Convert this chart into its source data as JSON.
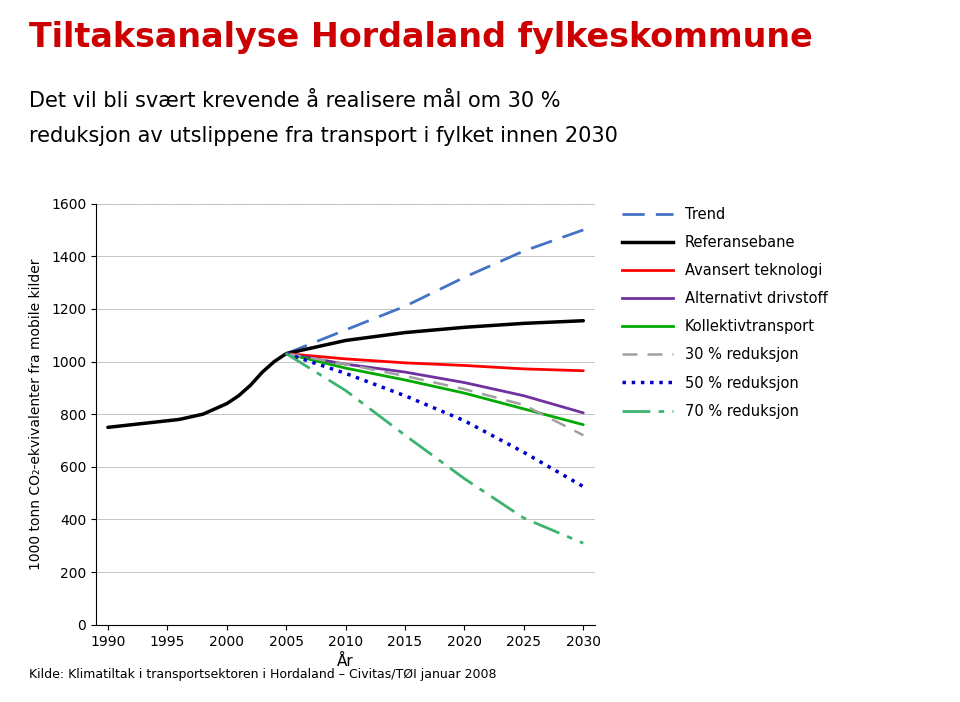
{
  "title_main": "Tiltaksanalyse Hordaland fylkeskommune",
  "subtitle_line1": "Det vil bli svært krevende å realisere mål om 30 %",
  "subtitle_line2": "reduksjon av utslippene fra transport i fylket innen 2030",
  "xlabel": "År",
  "ylabel": "1000 tonn CO₂-ekvivalenter fra mobile kilder",
  "footnote": "Kilde: Klimatiltak i transportsektoren i Hordaland – Civitas/TØI januar 2008",
  "ylim": [
    0,
    1600
  ],
  "yticks": [
    0,
    200,
    400,
    600,
    800,
    1000,
    1200,
    1400,
    1600
  ],
  "xticks": [
    1990,
    1995,
    2000,
    2005,
    2010,
    2015,
    2020,
    2025,
    2030
  ],
  "series": {
    "Trend": {
      "x": [
        2005,
        2010,
        2015,
        2020,
        2025,
        2030
      ],
      "y": [
        1030,
        1120,
        1210,
        1320,
        1420,
        1500
      ],
      "color": "#4472C4",
      "linestyle": "--",
      "linewidth": 2.0,
      "dashes": [
        8,
        4
      ]
    },
    "Referansebane": {
      "x": [
        1990,
        1992,
        1994,
        1996,
        1998,
        2000,
        2001,
        2002,
        2003,
        2004,
        2005,
        2010,
        2015,
        2020,
        2025,
        2030
      ],
      "y": [
        750,
        760,
        770,
        780,
        800,
        840,
        870,
        910,
        960,
        1000,
        1030,
        1080,
        1110,
        1130,
        1145,
        1155
      ],
      "color": "#000000",
      "linestyle": "-",
      "linewidth": 2.5,
      "dashes": null
    },
    "Avansert teknologi": {
      "x": [
        2005,
        2010,
        2015,
        2020,
        2025,
        2030
      ],
      "y": [
        1030,
        1010,
        995,
        985,
        972,
        965
      ],
      "color": "#FF0000",
      "linestyle": "-",
      "linewidth": 2.0,
      "dashes": null
    },
    "Alternativt drivstoff": {
      "x": [
        2005,
        2010,
        2015,
        2020,
        2025,
        2030
      ],
      "y": [
        1030,
        990,
        960,
        920,
        870,
        805
      ],
      "color": "#7030A0",
      "linestyle": "-",
      "linewidth": 2.0,
      "dashes": null
    },
    "Kollektivtransport": {
      "x": [
        2005,
        2010,
        2015,
        2020,
        2025,
        2030
      ],
      "y": [
        1030,
        975,
        930,
        880,
        820,
        760
      ],
      "color": "#00AA00",
      "linestyle": "-",
      "linewidth": 2.0,
      "dashes": null
    },
    "30 % reduksjon": {
      "x": [
        2005,
        2010,
        2015,
        2020,
        2025,
        2030
      ],
      "y": [
        1030,
        990,
        945,
        895,
        835,
        720
      ],
      "color": "#A0A0A0",
      "linestyle": "--",
      "linewidth": 1.8,
      "dashes": [
        6,
        4
      ]
    },
    "50 % reduksjon": {
      "x": [
        2005,
        2010,
        2015,
        2020,
        2025,
        2030
      ],
      "y": [
        1030,
        955,
        870,
        775,
        655,
        525
      ],
      "color": "#0000CD",
      "linestyle": ":",
      "linewidth": 2.5,
      "dashes": null
    },
    "70 % reduksjon": {
      "x": [
        2005,
        2010,
        2015,
        2020,
        2025,
        2030
      ],
      "y": [
        1030,
        890,
        720,
        555,
        405,
        310
      ],
      "color": "#3CB371",
      "linestyle": "--",
      "linewidth": 2.0,
      "dashes": [
        10,
        3,
        2,
        3
      ]
    }
  },
  "background_color": "#FFFFFF",
  "title_color": "#CC0000",
  "subtitle_color": "#000000",
  "grid_color": "#BBBBBB",
  "legend_order": [
    "Trend",
    "Referansebane",
    "Avansert teknologi",
    "Alternativt drivstoff",
    "Kollektivtransport",
    "30 % reduksjon",
    "50 % reduksjon",
    "70 % reduksjon"
  ]
}
